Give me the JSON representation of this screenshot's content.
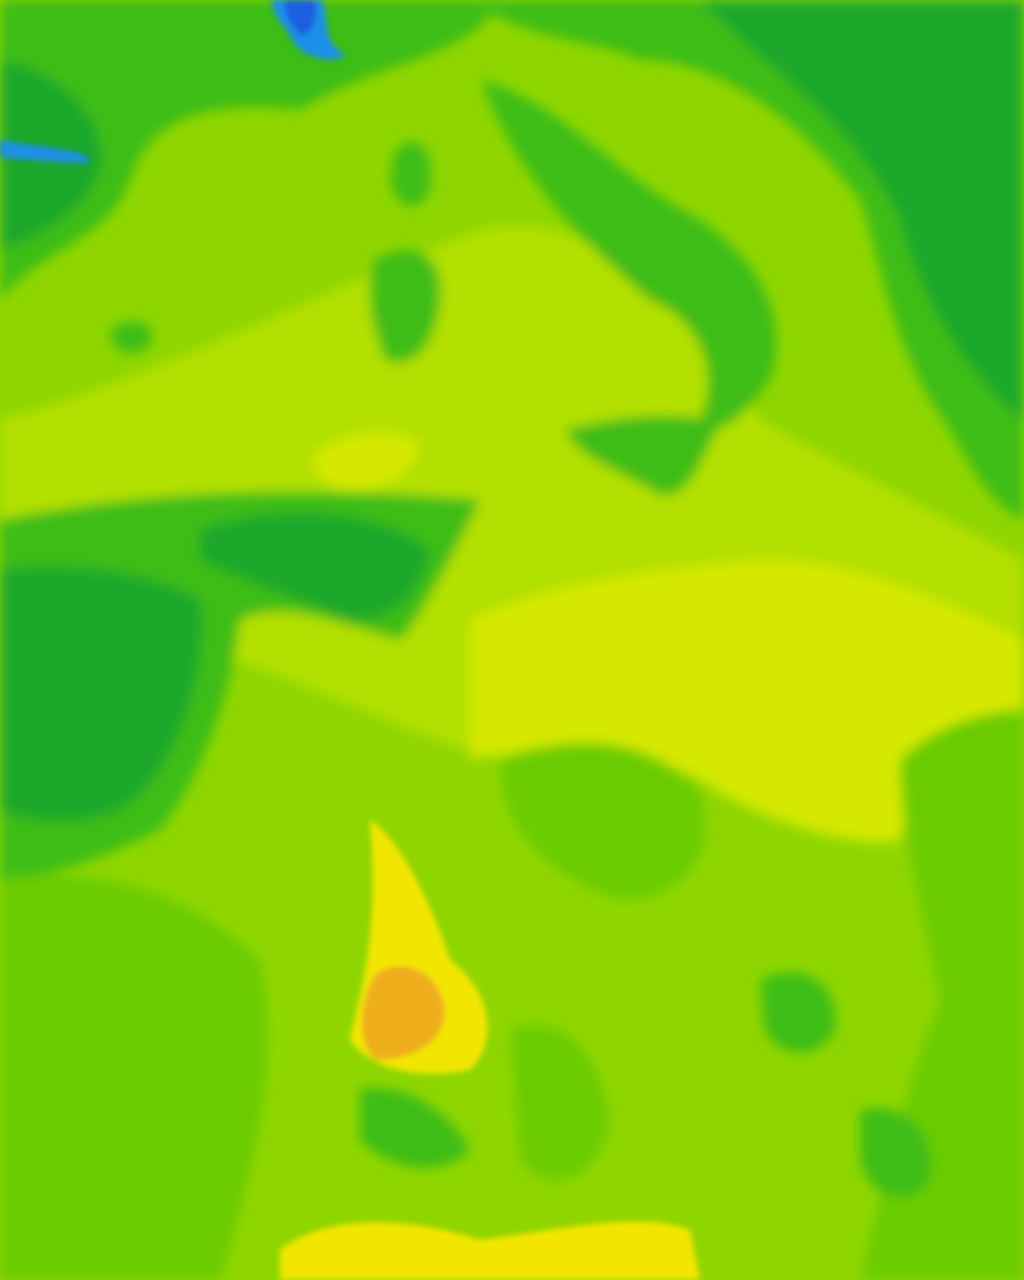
{
  "map": {
    "kind": "temperature-heatmap-tile",
    "palette": {
      "deep_blue": "#1a5fe0",
      "blue": "#1f8fe8",
      "dark_green": "#1ea82c",
      "green": "#3dbd14",
      "mid_green": "#6acc00",
      "lime": "#8fd600",
      "yellow_green": "#b2e000",
      "pale_yellow": "#d4e800",
      "yellow": "#f2e600",
      "orange": "#eeae1c"
    }
  }
}
